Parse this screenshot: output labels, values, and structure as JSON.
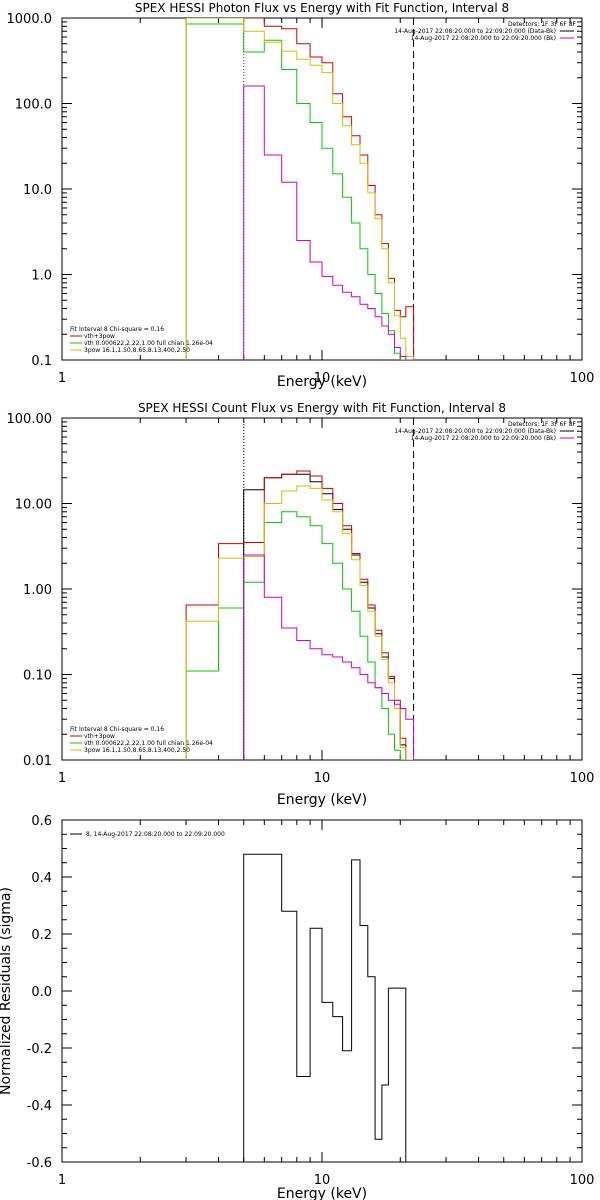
{
  "chart_data": [
    {
      "type": "line",
      "title": "SPEX HESSI Photon Flux vs Energy with Fit Function, Interval 8",
      "xlabel": "Energy (keV)",
      "ylabel": "",
      "xscale": "log",
      "yscale": "log",
      "xlim": [
        1,
        100
      ],
      "ylim": [
        0.1,
        1000
      ],
      "x_tick_labels": [
        "1",
        "10",
        "100"
      ],
      "y_tick_labels": [
        "0.1",
        "1.0",
        "10.0",
        "100.0",
        "1000.0"
      ],
      "bin_edges": [
        3,
        4,
        5,
        6,
        7,
        8,
        9,
        10,
        11,
        12,
        13,
        14,
        15,
        16,
        17,
        18,
        19,
        20,
        21,
        22.5
      ],
      "series": [
        {
          "name": "vth+3pow",
          "color": "#cc0000",
          "values": [
            1000,
            1000,
            1000,
            800,
            750,
            500,
            350,
            300,
            130,
            70,
            42,
            25,
            11,
            5,
            2.3,
            0.9,
            0.38,
            0.32,
            0.42
          ]
        },
        {
          "name": "vth 0.000622,2.22,1.00  full chian 1.26e-04",
          "color": "#00cc00",
          "values": [
            850,
            850,
            400,
            550,
            250,
            100,
            60,
            30,
            15,
            8,
            4,
            2,
            1.0,
            0.6,
            0.35,
            0.22,
            0.12,
            0.1,
            0.1
          ]
        },
        {
          "name": "3pow 16.1,1.50,8.65,8.13,400,2.50",
          "color": "#ddbb00",
          "values": [
            1000,
            1000,
            700,
            520,
            410,
            330,
            280,
            230,
            100,
            55,
            33,
            20,
            9,
            4.5,
            2.0,
            0.8,
            0.33,
            0.18,
            0.11
          ]
        },
        {
          "name": "14-Aug-2017 22:08:20.000 to 22:09:20.000 (Bk)",
          "color": "#cc00cc",
          "start_index": 2,
          "values": [
            160,
            25,
            12,
            2.5,
            1.4,
            0.95,
            0.75,
            0.62,
            0.55,
            0.45,
            0.4,
            0.32,
            0.25,
            0.2,
            0.14,
            0.11,
            0.1
          ]
        }
      ],
      "vlines": [
        {
          "x": 5,
          "style": "dotted",
          "color": "#800080"
        },
        {
          "x": 22.5,
          "style": "dashed",
          "color": "#000000"
        }
      ],
      "legend_header": "Detectors: 1F 3F 6F 8F",
      "legend_top_right": [
        {
          "text": "14-Aug-2017 22:08:20.000 to 22:09:20.000 (Data-Bk)",
          "color": "#000000"
        },
        {
          "text": "14-Aug-2017 22:08:20.000 to 22:09:20.000 (Bk)",
          "color": "#cc00cc"
        }
      ],
      "legend_bottom_left_title": "Fit Interval 8   Chi-square = 0.16",
      "legend_bottom_left": [
        {
          "text": "vth+3pow",
          "color": "#cc0000"
        },
        {
          "text": "vth 0.000622,2.22,1.00  full chian 1.26e-04",
          "color": "#00cc00"
        },
        {
          "text": "3pow 16.1,1.50,8.65,8.13,400,2.50",
          "color": "#ddbb00"
        }
      ]
    },
    {
      "type": "line",
      "title": "SPEX HESSI Count Flux vs Energy with Fit Function, Interval 8",
      "xlabel": "Energy (keV)",
      "ylabel": "",
      "xscale": "log",
      "yscale": "log",
      "xlim": [
        1,
        100
      ],
      "ylim": [
        0.01,
        100
      ],
      "x_tick_labels": [
        "1",
        "10",
        "100"
      ],
      "y_tick_labels": [
        "0.01",
        "0.10",
        "1.00",
        "10.00",
        "100.00"
      ],
      "bin_edges": [
        3,
        4,
        5,
        6,
        7,
        8,
        9,
        10,
        11,
        12,
        13,
        14,
        15,
        16,
        17,
        18,
        19,
        20,
        21,
        22.5,
        24
      ],
      "series": [
        {
          "name": "Data-Bk",
          "color": "#000000",
          "start_index": 2,
          "values": [
            14.5,
            20,
            22,
            22,
            18,
            13,
            8.5,
            5,
            2.5,
            1.2,
            0.6,
            0.3,
            0.16,
            0.09,
            0.04,
            0.015,
            0.008,
            0.008
          ]
        },
        {
          "name": "vth+3pow",
          "color": "#cc0000",
          "values": [
            0.65,
            3.4,
            3.5,
            20,
            22,
            24,
            21,
            15,
            10,
            5.5,
            2.6,
            1.3,
            0.65,
            0.33,
            0.18,
            0.095,
            0.05,
            0.018,
            0.01
          ]
        },
        {
          "name": "vth 0.000622,2.22,1.00  full chian 1.26e-04",
          "color": "#00cc00",
          "values": [
            0.11,
            0.6,
            1.2,
            6,
            8,
            7,
            5.5,
            3.4,
            2.0,
            1.0,
            0.55,
            0.28,
            0.14,
            0.07,
            0.04,
            0.02,
            0.013,
            0.009,
            0.009
          ]
        },
        {
          "name": "3pow 16.1,1.50,8.65,8.13,400,2.50",
          "color": "#ddbb00",
          "values": [
            0.42,
            2.3,
            2.4,
            10,
            14,
            16,
            15,
            11,
            8,
            4.5,
            2.2,
            1.1,
            0.55,
            0.28,
            0.15,
            0.08,
            0.04,
            0.014,
            0.01
          ]
        },
        {
          "name": "14-Aug-2017 22:08:20.000 to 22:09:20.000 (Bk)",
          "color": "#cc00cc",
          "start_index": 2,
          "values": [
            2.5,
            0.8,
            0.35,
            0.25,
            0.2,
            0.17,
            0.16,
            0.14,
            0.12,
            0.1,
            0.08,
            0.07,
            0.06,
            0.05,
            0.045,
            0.04,
            0.03
          ]
        }
      ],
      "vlines": [
        {
          "x": 5,
          "style": "dotted",
          "color": "#000000"
        },
        {
          "x": 5,
          "style": "dotted",
          "color": "#800080"
        },
        {
          "x": 22.5,
          "style": "dashed",
          "color": "#000000"
        }
      ],
      "legend_header": "Detectors: 1F 3F 6F 8F",
      "legend_top_right": [
        {
          "text": "14-Aug-2017 22:08:20.000 to 22:09:20.000 (Data-Bk)",
          "color": "#000000"
        },
        {
          "text": "14-Aug-2017 22:08:20.000 to 22:09:20.000 (Bk)",
          "color": "#cc00cc"
        }
      ],
      "legend_bottom_left_title": "Fit Interval 8   Chi-square = 0.16",
      "legend_bottom_left": [
        {
          "text": "vth+3pow",
          "color": "#cc0000"
        },
        {
          "text": "vth 0.000622,2.22,1.00  full chian 1.26e-04",
          "color": "#00cc00"
        },
        {
          "text": "3pow 16.1,1.50,8.65,8.13,400,2.50",
          "color": "#ddbb00"
        }
      ]
    },
    {
      "type": "line",
      "title": "",
      "xlabel": "Energy (keV)",
      "ylabel": "Normalized Residuals (sigma)",
      "xscale": "log",
      "yscale": "linear",
      "xlim": [
        1,
        100
      ],
      "ylim": [
        -0.6,
        0.6
      ],
      "x_tick_labels": [
        "1",
        "10",
        "100"
      ],
      "y_tick_labels": [
        "-0.6",
        "-0.4",
        "-0.2",
        "0.0",
        "0.2",
        "0.4",
        "0.6"
      ],
      "bin_edges": [
        5,
        6,
        7,
        8,
        9,
        10,
        11,
        12,
        13,
        14,
        15,
        16,
        17,
        18,
        19,
        20,
        21,
        22.5
      ],
      "series": [
        {
          "name": "8, 14-Aug-2017 22:08:20.000 to 22:09:20.000",
          "color": "#000000",
          "values": [
            0.48,
            0.48,
            0.28,
            -0.3,
            0.22,
            -0.04,
            -0.09,
            -0.21,
            0.46,
            0.23,
            0.05,
            -0.52,
            -0.33,
            0.01,
            0.01,
            0.01,
            -0.6
          ]
        }
      ],
      "legend_top_left": [
        {
          "text": "8, 14-Aug-2017 22:08:20.000 to 22:09:20.000",
          "color": "#000000"
        }
      ]
    }
  ]
}
